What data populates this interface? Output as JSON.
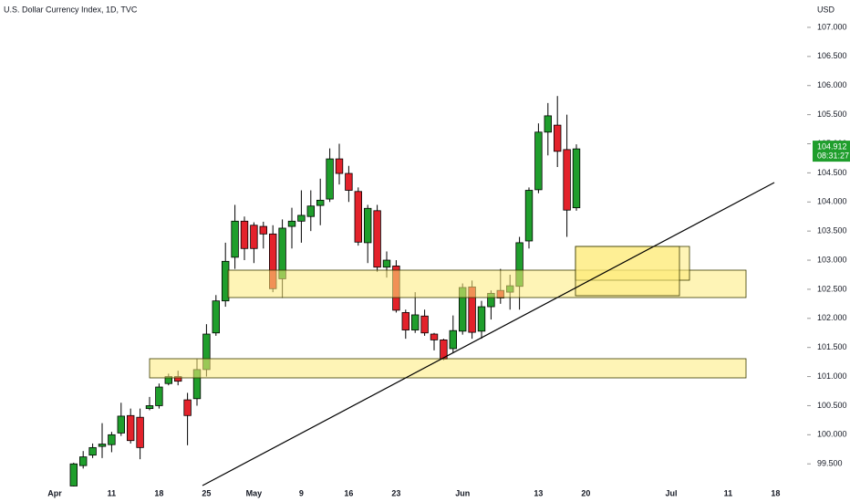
{
  "chart_data": {
    "type": "candlestick",
    "title": "U.S. Dollar Currency Index, 1D, TVC",
    "currency": "USD",
    "categories": [
      "Apr",
      null,
      null,
      null,
      null,
      null,
      "11",
      null,
      null,
      null,
      null,
      "18",
      null,
      null,
      null,
      null,
      "25",
      null,
      null,
      null,
      null,
      "May",
      null,
      null,
      null,
      null,
      "9",
      null,
      null,
      null,
      null,
      "16",
      null,
      null,
      null,
      null,
      "23",
      null,
      null,
      null,
      null,
      null,
      null,
      "Jun",
      null,
      null,
      null,
      null,
      null,
      null,
      null,
      "13",
      null,
      null,
      null,
      null,
      "20",
      null,
      null,
      null,
      null,
      null,
      null,
      null,
      null,
      "Jul",
      null,
      null,
      null,
      null,
      null,
      "11",
      null,
      null,
      null,
      null,
      "18"
    ],
    "open": [
      null,
      null,
      99.12,
      99.47,
      99.65,
      99.8,
      99.83,
      100.03,
      100.33,
      100.3,
      100.45,
      100.5,
      100.88,
      101.0,
      100.6,
      100.62,
      101.12,
      101.75,
      102.3,
      103.05,
      103.67,
      103.6,
      103.58,
      103.45,
      102.68,
      103.58,
      103.67,
      103.75,
      103.94,
      104.05,
      104.74,
      104.49,
      104.18,
      103.3,
      103.85,
      102.88,
      102.9,
      102.1,
      101.8,
      102.04,
      101.73,
      101.63,
      101.48,
      101.78,
      102.54,
      101.78,
      102.2,
      102.48,
      102.45,
      102.55,
      103.33,
      104.21,
      105.2,
      105.32,
      104.9,
      103.9,
      null,
      null,
      null,
      null,
      null,
      null,
      null,
      null,
      null,
      null,
      null,
      null,
      null,
      null,
      null,
      null,
      null,
      null,
      null,
      null,
      null
    ],
    "high": [
      null,
      null,
      99.52,
      99.72,
      99.85,
      100.2,
      100.05,
      100.55,
      100.45,
      100.45,
      100.65,
      100.88,
      101.05,
      101.1,
      100.72,
      101.3,
      101.9,
      102.4,
      103.3,
      103.95,
      103.75,
      103.65,
      103.66,
      103.6,
      103.7,
      103.9,
      104.2,
      104.2,
      104.4,
      104.92,
      105.0,
      104.62,
      104.25,
      103.95,
      103.95,
      103.15,
      103.0,
      102.15,
      102.45,
      102.15,
      101.75,
      101.65,
      102.05,
      102.6,
      102.65,
      102.3,
      102.48,
      102.85,
      102.75,
      103.4,
      104.25,
      105.35,
      105.7,
      105.82,
      105.5,
      104.99,
      null,
      null,
      null,
      null,
      null,
      null,
      null,
      null,
      null,
      null,
      null,
      null,
      null,
      null,
      null,
      null,
      null,
      null,
      null,
      null,
      null
    ],
    "low": [
      null,
      null,
      99.1,
      99.42,
      99.6,
      99.6,
      99.7,
      99.98,
      99.85,
      99.58,
      100.42,
      100.45,
      100.85,
      100.85,
      99.82,
      100.5,
      101.0,
      101.7,
      102.2,
      102.85,
      103.0,
      102.95,
      103.2,
      102.45,
      102.35,
      103.2,
      103.3,
      103.5,
      103.6,
      104.0,
      104.3,
      104.0,
      103.25,
      102.95,
      102.8,
      102.7,
      102.1,
      101.65,
      101.75,
      101.7,
      101.45,
      101.28,
      101.4,
      101.72,
      101.65,
      101.65,
      101.98,
      102.25,
      102.15,
      102.15,
      103.2,
      104.15,
      104.8,
      104.6,
      103.4,
      103.85,
      null,
      null,
      null,
      null,
      null,
      null,
      null,
      null,
      null,
      null,
      null,
      null,
      null,
      null,
      null,
      null,
      null,
      null,
      null,
      null,
      null
    ],
    "close": [
      null,
      null,
      99.5,
      99.62,
      99.78,
      99.84,
      100.0,
      100.32,
      99.9,
      99.78,
      100.5,
      100.82,
      101.0,
      100.92,
      100.33,
      101.12,
      101.73,
      102.3,
      102.98,
      103.67,
      103.2,
      103.2,
      103.45,
      102.51,
      103.55,
      103.67,
      103.77,
      103.93,
      104.03,
      104.74,
      104.49,
      104.2,
      103.31,
      103.89,
      102.88,
      103.0,
      102.14,
      101.8,
      102.06,
      101.75,
      101.63,
      101.3,
      101.79,
      102.53,
      101.76,
      102.2,
      102.43,
      102.35,
      102.56,
      103.3,
      104.2,
      105.2,
      105.48,
      104.87,
      103.86,
      104.912,
      null,
      null,
      null,
      null,
      null,
      null,
      null,
      null,
      null,
      null,
      null,
      null,
      null,
      null,
      null,
      null,
      null,
      null,
      null,
      null,
      null
    ],
    "up_color": "#1f9e2c",
    "down_color": "#e3222b",
    "last_price": 104.912,
    "countdown": "08:31:27",
    "ylim": [
      99.08,
      107.47
    ],
    "yticks": [
      {
        "value": 99.5,
        "label": "99.500"
      },
      {
        "value": 100,
        "label": "100.000"
      },
      {
        "value": 100.5,
        "label": "100.500"
      },
      {
        "value": 101,
        "label": "101.000"
      },
      {
        "value": 101.5,
        "label": "101.500"
      },
      {
        "value": 102,
        "label": "102.000"
      },
      {
        "value": 102.5,
        "label": "102.500"
      },
      {
        "value": 103,
        "label": "103.000"
      },
      {
        "value": 103.5,
        "label": "103.500"
      },
      {
        "value": 104,
        "label": "104.000"
      },
      {
        "value": 104.5,
        "label": "104.500"
      },
      {
        "value": 105,
        "label": "105.000"
      },
      {
        "value": 105.5,
        "label": "105.500"
      },
      {
        "value": 106,
        "label": "106.000"
      },
      {
        "value": 106.5,
        "label": "106.500"
      },
      {
        "value": 107,
        "label": "107.000"
      }
    ]
  }
}
